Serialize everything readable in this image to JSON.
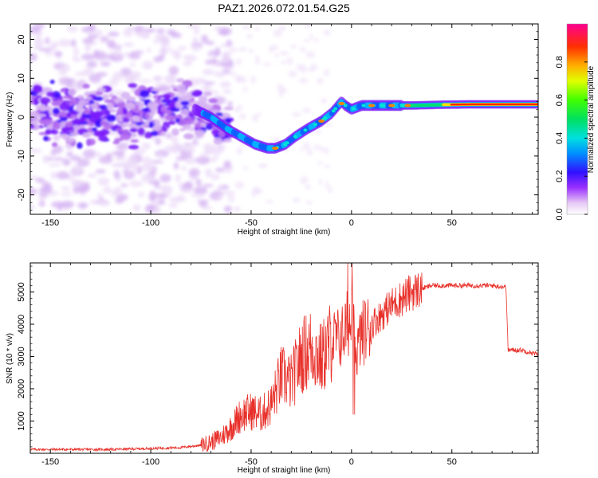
{
  "title": "PAZ1.2026.072.01.54.G25",
  "chart_data": [
    {
      "type": "heatmap",
      "xlabel": "Height of straight line (km)",
      "ylabel": "Frequency (Hz)",
      "xlim": [
        -160,
        93
      ],
      "ylim": [
        -25,
        24
      ],
      "xticks": [
        -150,
        -100,
        -50,
        0,
        50
      ],
      "xtick_labels": [
        "-150",
        "-100",
        "-50",
        "0",
        "50"
      ],
      "yticks": [
        -20,
        -10,
        0,
        10,
        20
      ],
      "ytick_labels": [
        "-20",
        "-10",
        "0",
        "10",
        "20"
      ],
      "grid": false,
      "ridge": {
        "x": [
          -158,
          -145,
          -130,
          -115,
          -100,
          -88,
          -78,
          -70,
          -62,
          -55,
          -48,
          -42,
          -38,
          -33,
          -28,
          -22,
          -15,
          -10,
          -5,
          -3,
          0,
          5,
          10,
          20,
          30,
          45,
          60,
          75,
          93
        ],
        "y": [
          2,
          0,
          1,
          0,
          1,
          2,
          2,
          0,
          -3,
          -5,
          -7,
          -8,
          -8,
          -7,
          -5,
          -3,
          -1,
          1,
          4,
          3,
          2,
          3,
          3,
          3,
          3,
          3.2,
          3.3,
          3.3,
          3.3
        ]
      },
      "colorbar": {
        "label": "Normalized spectral amplitude",
        "range": [
          0,
          1
        ],
        "ticks": [
          0.0,
          0.2,
          0.4,
          0.6,
          0.8
        ],
        "tick_labels": [
          "0.0",
          "0.2",
          "0.4",
          "0.6",
          "0.8"
        ]
      }
    },
    {
      "type": "line",
      "xlabel": "Height of straight line (km)",
      "ylabel": "SNR (10 * v/v)",
      "xlim": [
        -160,
        93
      ],
      "ylim": [
        0,
        5900
      ],
      "xticks": [
        -150,
        -100,
        -50,
        0,
        50
      ],
      "xtick_labels": [
        "-150",
        "-100",
        "-50",
        "0",
        "50"
      ],
      "yticks": [
        1000,
        2000,
        3000,
        4000,
        5000
      ],
      "ytick_labels": [
        "1000",
        "2000",
        "3000",
        "4000",
        "5000"
      ],
      "grid": false,
      "color": "#e8302a",
      "series": [
        {
          "x": [
            -160,
            -140,
            -120,
            -100,
            -85,
            -75,
            -70,
            -65,
            -60,
            -55,
            -50,
            -45,
            -40,
            -35,
            -30,
            -25,
            -20,
            -15,
            -10,
            -5,
            -2,
            0,
            2,
            5,
            10,
            15,
            20,
            25,
            30,
            35,
            40,
            50,
            60,
            70,
            77,
            78,
            85,
            93
          ],
          "y": [
            120,
            120,
            120,
            150,
            180,
            250,
            350,
            500,
            800,
            1200,
            1300,
            1200,
            1500,
            2400,
            2200,
            3000,
            3300,
            2900,
            3500,
            3600,
            4000,
            4400,
            3000,
            3700,
            4000,
            4300,
            4600,
            4800,
            5000,
            5100,
            5200,
            5200,
            5200,
            5200,
            5150,
            3200,
            3200,
            3050
          ]
        }
      ]
    }
  ]
}
